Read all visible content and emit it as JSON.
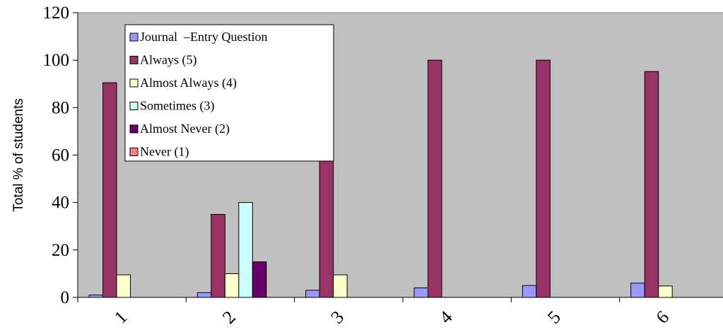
{
  "chart_data": {
    "type": "bar",
    "title": "",
    "xlabel": "",
    "ylabel": "Total % of students",
    "categories": [
      "1",
      "2",
      "3",
      "4",
      "5",
      "6"
    ],
    "ylim": [
      0,
      120
    ],
    "yticks": [
      0,
      20,
      40,
      60,
      80,
      100,
      120
    ],
    "grid": false,
    "legend_position": "top-left",
    "plot_background": "#c0c0c0",
    "series": [
      {
        "name": "Journal  –Entry Question",
        "color": "#9999ff",
        "values": [
          1,
          2,
          3,
          4,
          5,
          6
        ]
      },
      {
        "name": "Always (5)",
        "color": "#993366",
        "values": [
          90.5,
          35,
          90.5,
          100,
          100,
          95.2
        ]
      },
      {
        "name": "Almost Always (4)",
        "color": "#ffffcc",
        "values": [
          9.5,
          10,
          9.5,
          0,
          0,
          4.8
        ]
      },
      {
        "name": "Sometimes (3)",
        "color": "#ccffff",
        "values": [
          0,
          40,
          0,
          0,
          0,
          0
        ]
      },
      {
        "name": "Almost Never (2)",
        "color": "#660066",
        "values": [
          0,
          15,
          0,
          0,
          0,
          0
        ]
      },
      {
        "name": "Never (1)",
        "color": "#ff8080",
        "values": [
          0,
          0,
          0,
          0,
          0,
          0
        ]
      }
    ]
  }
}
